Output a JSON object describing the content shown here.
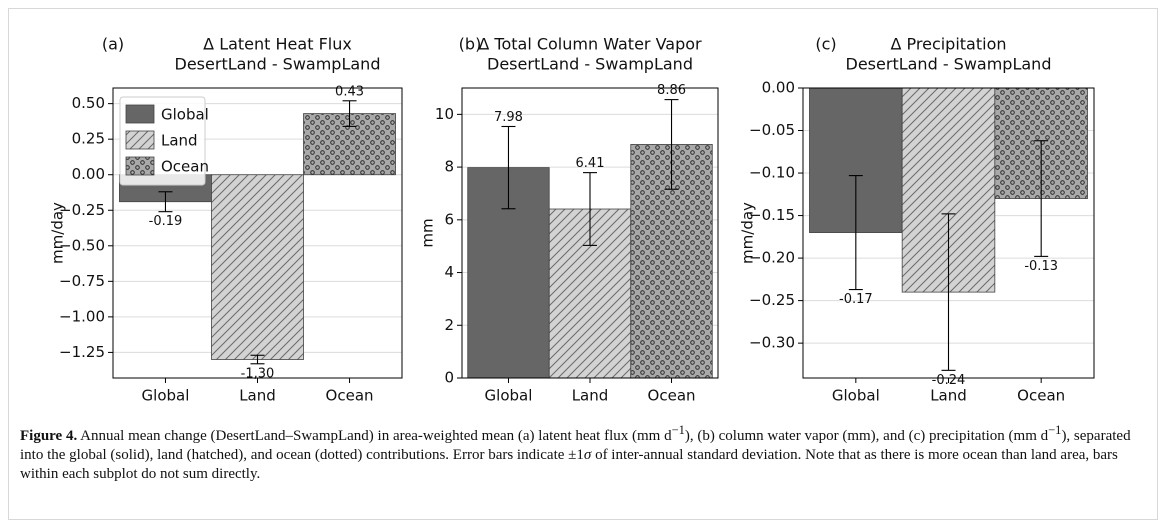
{
  "chart_data": [
    {
      "type": "bar",
      "panel": "(a)",
      "title": "Δ Latent Heat Flux",
      "subtitle": "DesertLand - SwampLand",
      "ylabel": "mm/day",
      "categories": [
        "Global",
        "Land",
        "Ocean"
      ],
      "values": [
        -0.19,
        -1.3,
        0.43
      ],
      "value_labels": [
        "-0.19",
        "-1,30",
        "0.43"
      ],
      "errors": [
        0.07,
        0.03,
        0.09
      ],
      "colors": [
        "#666666",
        "#d3d3d3",
        "#a9a9a9"
      ],
      "patterns": [
        "solid",
        "hatch",
        "dots"
      ],
      "ylim": [
        -1.43,
        0.61
      ],
      "yticks": [
        {
          "value": 0.5,
          "label": "0.50"
        },
        {
          "value": 0.25,
          "label": "0.25"
        },
        {
          "value": 0,
          "label": "0.00"
        },
        {
          "value": -0.25,
          "label": "−0.25"
        },
        {
          "value": -0.5,
          "label": "−0.50"
        },
        {
          "value": -0.75,
          "label": "−0.75"
        },
        {
          "value": -1,
          "label": "−1.00"
        },
        {
          "value": -1.25,
          "label": "−1.25"
        }
      ],
      "grid": true,
      "legend": "upper left"
    },
    {
      "type": "bar",
      "panel": "(b)",
      "title": "Δ Total Column Water Vapor",
      "subtitle": "DesertLand - SwampLand",
      "ylabel": "mm",
      "categories": [
        "Global",
        "Land",
        "Ocean"
      ],
      "values": [
        7.98,
        6.41,
        8.86
      ],
      "errors": [
        1.56,
        1.38,
        1.7
      ],
      "colors": [
        "#666666",
        "#d3d3d3",
        "#a9a9a9"
      ],
      "patterns": [
        "solid",
        "hatch",
        "dots"
      ],
      "ylim": [
        0,
        11
      ],
      "yticks": [
        0,
        2,
        4,
        6,
        8,
        10
      ],
      "grid": true
    },
    {
      "type": "bar",
      "panel": "(c)",
      "title": "Δ Precipitation",
      "subtitle": "DesertLand - SwampLand",
      "ylabel": "mm/day",
      "categories": [
        "Global",
        "Land",
        "Ocean"
      ],
      "values": [
        -0.17,
        -0.24,
        -0.13
      ],
      "errors": [
        0.067,
        0.092,
        0.068
      ],
      "colors": [
        "#666666",
        "#d3d3d3",
        "#a9a9a9"
      ],
      "patterns": [
        "solid",
        "hatch",
        "dots"
      ],
      "ylim": [
        -0.341,
        0
      ],
      "yticks": [
        {
          "value": 0,
          "label": "0.00"
        },
        {
          "value": -0.05,
          "label": "−0.05"
        },
        {
          "value": -0.1,
          "label": "−0.10"
        },
        {
          "value": -0.15,
          "label": "−0.15"
        },
        {
          "value": -0.2,
          "label": "−0.20"
        },
        {
          "value": -0.25,
          "label": "−0.25"
        },
        {
          "value": -0.3,
          "label": "−0.30"
        }
      ],
      "grid": true
    }
  ],
  "caption": {
    "label": "Figure 4.",
    "text": [
      "Annual mean change (DesertLand–SwampLand) in area-weighted mean (a) latent heat flux (mm d",
      "−1",
      "), (b) column water vapor (mm), and (c) precipitation (mm d",
      "−1",
      "), separated into the global (solid), land (hatched), and ocean (dotted) contributions. Error bars indicate ±1",
      "σ",
      " of inter-annual standard deviation. Note that as there is more ocean than land area, bars within each subplot do not sum directly."
    ]
  }
}
